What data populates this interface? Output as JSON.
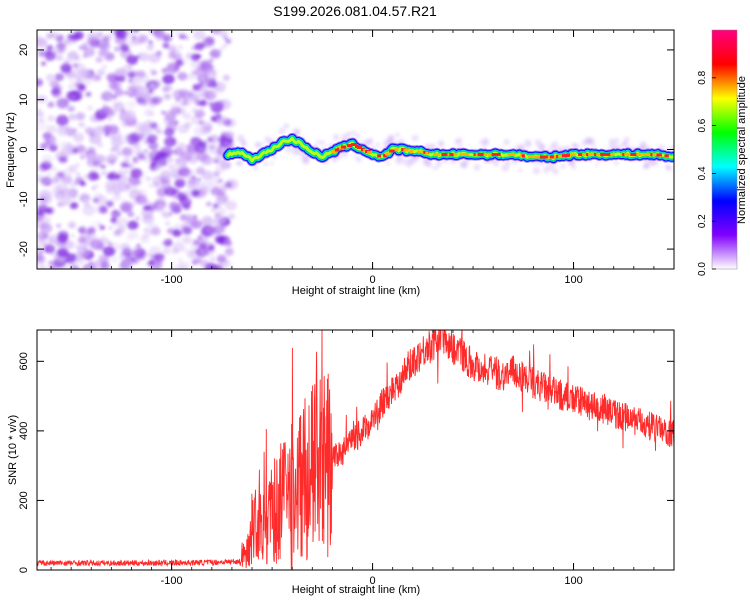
{
  "title": "S199.2026.081.04.57.R21",
  "chart_data": [
    {
      "type": "heatmap",
      "xlabel": "Height of straight line (km)",
      "ylabel": "Frequency (Hz)",
      "xlim": [
        -167,
        150
      ],
      "ylim": [
        -24,
        24
      ],
      "xticks": [
        -100,
        0,
        100
      ],
      "yticks": [
        -20,
        -10,
        0,
        10,
        20
      ],
      "grid": false,
      "noise_region_x": [
        -167,
        -72
      ],
      "noise_freq_range": [
        -24,
        24
      ],
      "signal_trace": {
        "x": [
          -72,
          -66,
          -60,
          -55,
          -50,
          -45,
          -40,
          -35,
          -30,
          -25,
          -20,
          -15,
          -10,
          -5,
          0,
          5,
          10,
          15,
          20,
          25,
          30,
          40,
          50,
          60,
          70,
          80,
          90,
          100,
          110,
          120,
          130,
          140,
          150
        ],
        "freq": [
          -1.0,
          -0.5,
          -2.0,
          -1.0,
          0.0,
          1.5,
          2.0,
          1.0,
          -0.5,
          -1.5,
          -0.5,
          0.5,
          1.0,
          0.0,
          -1.0,
          -1.5,
          0.0,
          0.0,
          -0.5,
          -0.5,
          -1.0,
          -1.0,
          -1.0,
          -1.0,
          -1.0,
          -1.5,
          -1.5,
          -1.0,
          -1.0,
          -1.0,
          -1.0,
          -1.0,
          -1.5
        ]
      },
      "colorbar": {
        "label": "Normalized spectral amplitude",
        "range": [
          0,
          1
        ],
        "ticks": [
          "0.0",
          "0.2",
          "0.4",
          "0.6",
          "0.8"
        ],
        "colors": [
          "#ffffff",
          "#8000ff",
          "#0000ff",
          "#00ffff",
          "#00ff00",
          "#ffff00",
          "#ff0000",
          "#ff0080"
        ]
      }
    },
    {
      "type": "line",
      "xlabel": "Height of straight line (km)",
      "ylabel": "SNR (10 * v/v)",
      "xlim": [
        -167,
        150
      ],
      "ylim": [
        0,
        690
      ],
      "xticks": [
        -100,
        0,
        100
      ],
      "yticks": [
        0,
        200,
        400,
        600
      ],
      "grid": false,
      "series": [
        {
          "name": "SNR",
          "color": "#ff2a2a",
          "x": [
            -167,
            -140,
            -110,
            -80,
            -66,
            -62,
            -58,
            -54,
            -50,
            -45,
            -40,
            -35,
            -30,
            -25,
            -20,
            -15,
            -10,
            -5,
            0,
            5,
            10,
            15,
            20,
            25,
            30,
            35,
            40,
            45,
            50,
            55,
            60,
            65,
            70,
            80,
            90,
            100,
            110,
            120,
            130,
            140,
            150
          ],
          "values": [
            20,
            20,
            20,
            22,
            25,
            60,
            150,
            130,
            160,
            200,
            230,
            260,
            280,
            300,
            320,
            340,
            370,
            400,
            430,
            480,
            520,
            560,
            600,
            630,
            650,
            670,
            640,
            620,
            590,
            580,
            570,
            560,
            570,
            540,
            510,
            490,
            470,
            450,
            430,
            410,
            390
          ]
        }
      ]
    }
  ]
}
